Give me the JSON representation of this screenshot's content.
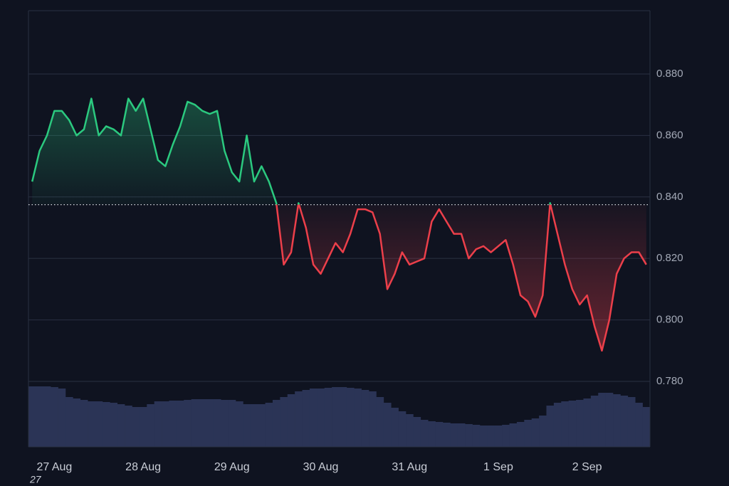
{
  "chart_data": {
    "type": "line",
    "categories": [
      null,
      null,
      null,
      "27 Aug",
      null,
      null,
      null,
      null,
      null,
      null,
      null,
      null,
      null,
      null,
      null,
      "28 Aug",
      null,
      null,
      null,
      null,
      null,
      null,
      null,
      null,
      null,
      null,
      null,
      "29 Aug",
      null,
      null,
      null,
      null,
      null,
      null,
      null,
      null,
      null,
      null,
      null,
      "30 Aug",
      null,
      null,
      null,
      null,
      null,
      null,
      null,
      null,
      null,
      null,
      null,
      "31 Aug",
      null,
      null,
      null,
      null,
      null,
      null,
      null,
      null,
      null,
      null,
      null,
      "1 Sep",
      null,
      null,
      null,
      null,
      null,
      null,
      null,
      null,
      null,
      null,
      null,
      "2 Sep",
      null,
      null,
      null,
      null,
      null,
      null,
      null,
      null
    ],
    "values": [
      0.845,
      0.855,
      0.86,
      0.868,
      0.868,
      0.865,
      0.86,
      0.862,
      0.872,
      0.86,
      0.863,
      0.862,
      0.86,
      0.872,
      0.868,
      0.872,
      0.862,
      0.852,
      0.85,
      0.857,
      0.863,
      0.871,
      0.87,
      0.868,
      0.867,
      0.868,
      0.855,
      0.848,
      0.845,
      0.86,
      0.845,
      0.85,
      0.845,
      0.838,
      0.818,
      0.822,
      0.838,
      0.83,
      0.818,
      0.815,
      0.82,
      0.825,
      0.822,
      0.828,
      0.836,
      0.836,
      0.835,
      0.828,
      0.81,
      0.815,
      0.822,
      0.818,
      0.819,
      0.82,
      0.832,
      0.836,
      0.832,
      0.828,
      0.828,
      0.82,
      0.823,
      0.824,
      0.822,
      0.824,
      0.826,
      0.818,
      0.808,
      0.806,
      0.801,
      0.808,
      0.838,
      0.828,
      0.818,
      0.81,
      0.805,
      0.808,
      0.798,
      0.79,
      0.8,
      0.815,
      0.82,
      0.822,
      0.822,
      0.818
    ],
    "baseline": 0.8375,
    "up_color": "#2bc97f",
    "down_color": "#ec3f4a",
    "volume": {
      "color": "#2b3456",
      "values": [
        85,
        85,
        85,
        84,
        82,
        70,
        68,
        66,
        64,
        64,
        63,
        62,
        60,
        58,
        56,
        56,
        60,
        64,
        64,
        65,
        65,
        66,
        67,
        67,
        67,
        67,
        66,
        66,
        64,
        60,
        60,
        60,
        62,
        66,
        70,
        74,
        78,
        80,
        82,
        82,
        83,
        84,
        84,
        83,
        82,
        80,
        78,
        70,
        62,
        55,
        50,
        46,
        42,
        38,
        36,
        35,
        34,
        33,
        33,
        32,
        31,
        30,
        30,
        30,
        31,
        33,
        35,
        38,
        40,
        44,
        58,
        62,
        64,
        65,
        66,
        68,
        72,
        76,
        76,
        74,
        72,
        70,
        62,
        56
      ]
    },
    "ylim": [
      0.7587,
      0.9006
    ],
    "yticks": [
      {
        "value": 0.78,
        "label": "0.780"
      },
      {
        "value": 0.8,
        "label": "0.800"
      },
      {
        "value": 0.82,
        "label": "0.820"
      },
      {
        "value": 0.84,
        "label": "0.840"
      },
      {
        "value": 0.86,
        "label": "0.860"
      },
      {
        "value": 0.88,
        "label": "0.880"
      }
    ],
    "grid": true,
    "footnote": "27"
  }
}
